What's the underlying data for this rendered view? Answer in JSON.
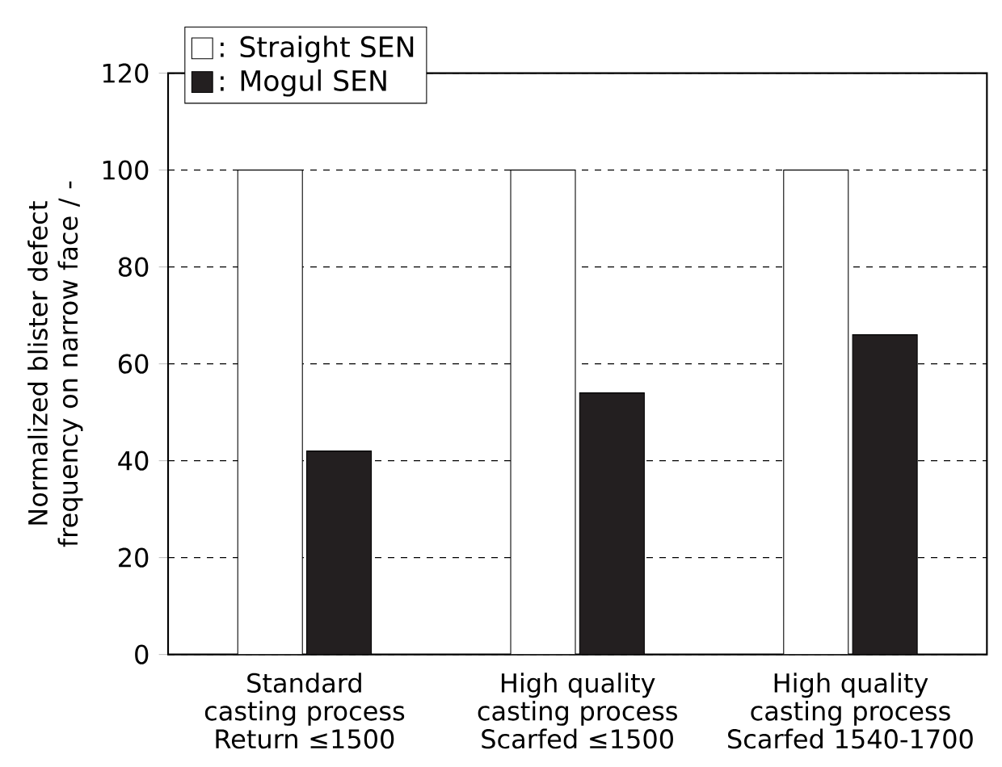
{
  "chart_data": {
    "type": "bar",
    "ylabel": "Normalized blister defect frequency on narrow face / -",
    "categories": [
      "Standard casting process Return ≤1500",
      "High quality casting process Scarfed ≤1500",
      "High quality casting process Scarfed 1540-1700"
    ],
    "series": [
      {
        "name": ": Straight SEN",
        "color": "#ffffff",
        "values": [
          100,
          100,
          100
        ]
      },
      {
        "name": ": Mogul SEN",
        "color": "#231f20",
        "values": [
          42,
          54,
          66
        ]
      }
    ],
    "ylim": [
      0,
      120
    ],
    "yticks": [
      0,
      20,
      40,
      60,
      80,
      100,
      120
    ],
    "grid": "y",
    "legend": "top left"
  }
}
